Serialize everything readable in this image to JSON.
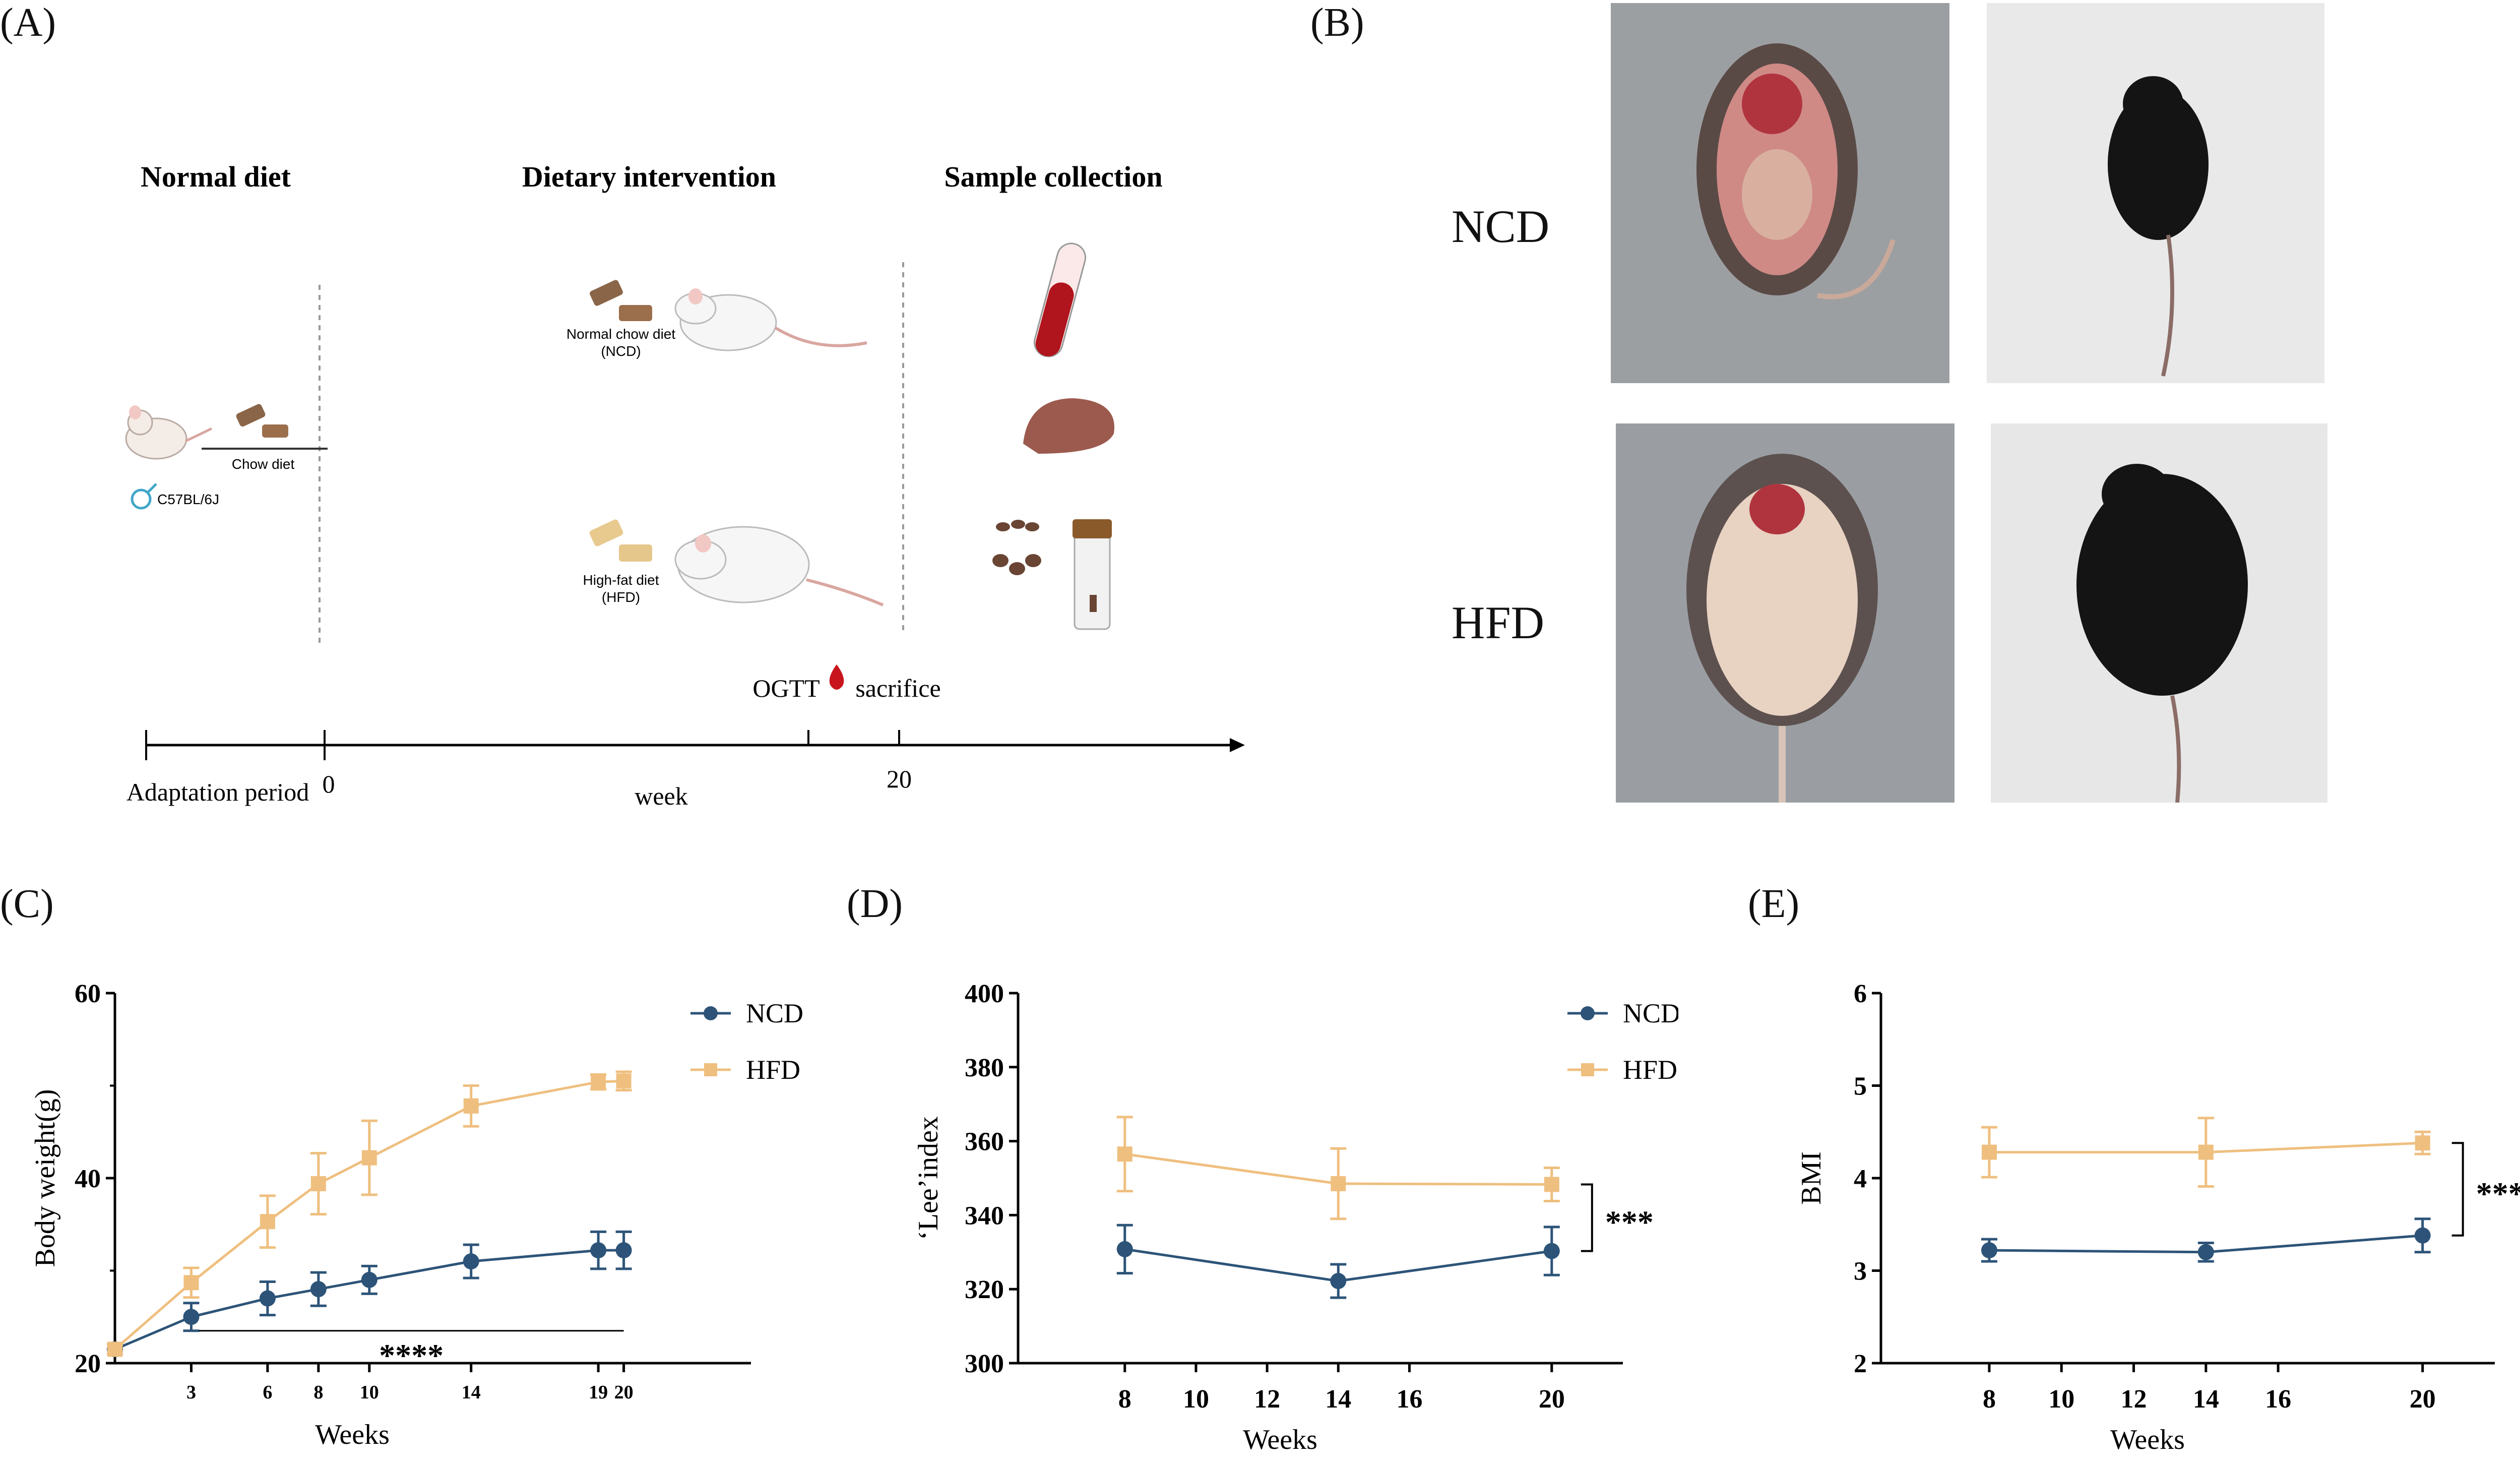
{
  "panels": {
    "a": "(A)",
    "b": "(B)",
    "c": "(C)",
    "d": "(D)",
    "e": "(E)"
  },
  "schematic": {
    "normal_diet": "Normal diet",
    "dietary_intervention": "Dietary intervention",
    "sample_collection": "Sample collection",
    "ncd_label_1": "Normal chow diet",
    "ncd_label_2": "(NCD)",
    "hfd_label_1": "High-fat diet",
    "hfd_label_2": "(HFD)",
    "chow_diet": "Chow diet",
    "strain": "C57BL/6J",
    "ogtt": "OGTT",
    "sacrifice": "sacrifice",
    "adaptation": "Adaptation period",
    "zero": "0",
    "week": "week",
    "twenty": "20"
  },
  "photos": {
    "ncd": "NCD",
    "hfd": "HFD"
  },
  "colors": {
    "ncd": "#2d5478",
    "hfd": "#efbf7f",
    "axis": "#000000"
  },
  "chart_data": [
    {
      "type": "line",
      "id": "C",
      "xlabel": "Weeks",
      "ylabel": "Body weight(g)",
      "ylim": [
        20,
        60
      ],
      "yticks": [
        "20",
        "40",
        "60"
      ],
      "x": [
        0,
        3,
        6,
        8,
        10,
        14,
        19,
        20
      ],
      "xtick_labels": [
        "3",
        "6",
        "8",
        "10",
        "14",
        "19",
        "20"
      ],
      "xtick_values": [
        3,
        6,
        8,
        10,
        14,
        19,
        20
      ],
      "xlim": [
        0,
        25
      ],
      "series": [
        {
          "name": "NCD",
          "values": [
            21.5,
            25,
            27,
            28,
            29,
            31,
            32.2,
            32.2
          ],
          "err": [
            0.5,
            1.5,
            1.8,
            1.8,
            1.5,
            1.8,
            2.0,
            2.0
          ]
        },
        {
          "name": "HFD",
          "values": [
            21.5,
            28.7,
            35.3,
            39.4,
            42.2,
            47.8,
            50.4,
            50.5
          ],
          "err": [
            0.5,
            1.6,
            2.8,
            3.3,
            4.0,
            2.2,
            0.8,
            1.0
          ]
        }
      ],
      "significance": "****",
      "legend_position": "top-right"
    },
    {
      "type": "line",
      "id": "D",
      "xlabel": "Weeks",
      "ylabel": "‘Lee’index",
      "ylim": [
        300,
        400
      ],
      "yticks": [
        "300",
        "320",
        "340",
        "360",
        "380",
        "400"
      ],
      "x": [
        8,
        14,
        20
      ],
      "xtick_labels": [
        "8",
        "10",
        "12",
        "14",
        "16",
        "20"
      ],
      "xtick_values": [
        8,
        10,
        12,
        14,
        16,
        20
      ],
      "xlim": [
        5,
        22
      ],
      "series": [
        {
          "name": "NCD",
          "values": [
            330.8,
            322.2,
            330.3
          ],
          "err": [
            6.5,
            4.5,
            6.5
          ]
        },
        {
          "name": "HFD",
          "values": [
            356.5,
            348.5,
            348.3
          ],
          "err": [
            10,
            9.5,
            4.5
          ]
        }
      ],
      "significance": "***",
      "legend_position": "top-right"
    },
    {
      "type": "line",
      "id": "E",
      "xlabel": "Weeks",
      "ylabel": "BMI",
      "ylim": [
        2,
        6
      ],
      "yticks": [
        "2",
        "3",
        "4",
        "5",
        "6"
      ],
      "x": [
        8,
        14,
        20
      ],
      "xtick_labels": [
        "8",
        "10",
        "12",
        "14",
        "16",
        "20"
      ],
      "xtick_values": [
        8,
        10,
        12,
        14,
        16,
        20
      ],
      "xlim": [
        5,
        22
      ],
      "series": [
        {
          "name": "NCD",
          "values": [
            3.22,
            3.2,
            3.38
          ],
          "err": [
            0.12,
            0.1,
            0.18
          ]
        },
        {
          "name": "HFD",
          "values": [
            4.28,
            4.28,
            4.38
          ],
          "err": [
            0.27,
            0.37,
            0.12
          ]
        }
      ],
      "significance": "***"
    }
  ]
}
